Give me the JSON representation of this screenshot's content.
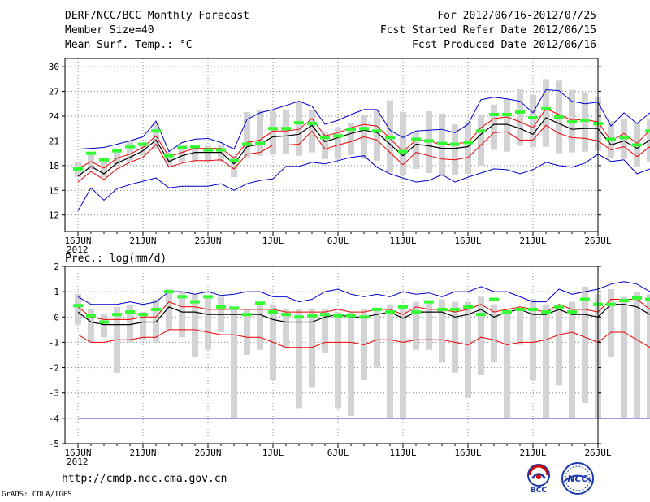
{
  "header": {
    "title": "DERF/NCC/BCC Monthly Forecast",
    "member_size": "Member Size=40",
    "variable": "Mean Surf. Temp.: °C",
    "period": "For 2012/06/16-2012/07/25",
    "fcst_started": "Fcst Started Refer Date 2012/06/15",
    "fcst_produced": "Fcst Produced Date 2012/06/16"
  },
  "footer": {
    "url": "http://cmdp.ncc.cma.gov.cn",
    "grads": "GrADS: COLA/IGES",
    "logo_bcc": "BCC",
    "logo_ncc": "NCC"
  },
  "colors": {
    "box": "#d3d3d6",
    "green": "#33ff33",
    "red": "#ee0000",
    "blue": "#0000cc",
    "mean": "#000000",
    "grid": "#888888"
  },
  "chart_data": [
    {
      "type": "line",
      "title": "Mean Surf. Temp.: °C",
      "x_tick_labels": [
        "16JUN",
        "21JUN",
        "26JUN",
        "1JUL",
        "6JUL",
        "11JUL",
        "16JUL",
        "21JUL",
        "26JUL"
      ],
      "year_label": "2012",
      "ylim": [
        10,
        31
      ],
      "yticks": [
        12,
        15,
        18,
        21,
        24,
        27,
        30
      ],
      "ytick_labels": [
        "12",
        "15",
        "18",
        "21",
        "24",
        "27",
        "30"
      ],
      "series": [
        {
          "name": "max",
          "color": "blue",
          "values": [
            20.0,
            20.1,
            20.2,
            20.6,
            21.0,
            21.5,
            23.4,
            19.7,
            20.8,
            21.2,
            21.3,
            20.8,
            20.0,
            23.6,
            24.4,
            24.8,
            25.3,
            25.8,
            25.2,
            23.0,
            23.5,
            24.2,
            24.8,
            24.8,
            22.3,
            21.4,
            22.2,
            22.3,
            22.4,
            22.0,
            23.0,
            26.0,
            26.3,
            26.1,
            25.8,
            24.4,
            27.2,
            27.1,
            25.8,
            25.5,
            25.7,
            22.8,
            24.4,
            23.1,
            24.4,
            24.2
          ]
        },
        {
          "name": "upper",
          "color": "red",
          "values": [
            17.6,
            18.5,
            17.7,
            18.9,
            19.4,
            20.2,
            21.6,
            19.1,
            19.6,
            20.1,
            20.1,
            20.1,
            18.9,
            20.8,
            21.1,
            22.2,
            22.2,
            22.4,
            23.7,
            21.6,
            22.0,
            22.6,
            23.0,
            22.8,
            21.3,
            19.7,
            21.1,
            21.0,
            20.5,
            20.7,
            20.8,
            22.6,
            23.7,
            23.9,
            23.3,
            22.6,
            24.9,
            24.2,
            23.5,
            23.6,
            23.3,
            21.0,
            21.9,
            20.7,
            22.3,
            21.6
          ]
        },
        {
          "name": "mean",
          "color": "mean",
          "values": [
            16.7,
            17.9,
            17.0,
            18.3,
            19.0,
            19.8,
            21.1,
            18.5,
            19.2,
            19.6,
            19.6,
            19.6,
            18.2,
            20.3,
            20.6,
            21.5,
            21.6,
            21.8,
            22.9,
            20.9,
            21.4,
            21.9,
            22.3,
            22.0,
            20.6,
            19.2,
            20.6,
            20.4,
            20.1,
            20.1,
            20.3,
            21.8,
            23.0,
            23.0,
            22.5,
            21.8,
            23.8,
            23.1,
            22.4,
            22.5,
            22.5,
            20.5,
            21.0,
            20.1,
            21.1,
            20.6
          ]
        },
        {
          "name": "lower",
          "color": "red",
          "values": [
            16.0,
            17.3,
            16.3,
            17.6,
            18.4,
            19.0,
            20.6,
            17.8,
            18.3,
            18.6,
            18.6,
            18.7,
            17.6,
            19.4,
            19.6,
            20.5,
            20.5,
            20.6,
            22.2,
            20.0,
            20.5,
            20.9,
            21.5,
            21.1,
            19.6,
            18.1,
            19.6,
            19.2,
            18.8,
            18.7,
            19.0,
            20.5,
            22.0,
            22.1,
            21.1,
            21.1,
            22.9,
            21.9,
            21.4,
            21.3,
            21.0,
            19.9,
            20.3,
            19.1,
            20.3,
            19.7
          ]
        },
        {
          "name": "min",
          "color": "blue",
          "values": [
            12.5,
            15.3,
            13.8,
            15.2,
            15.7,
            16.1,
            16.5,
            15.3,
            15.5,
            15.5,
            15.5,
            15.8,
            15.0,
            15.8,
            16.2,
            16.4,
            17.9,
            17.9,
            18.4,
            18.2,
            18.6,
            19.0,
            19.2,
            17.8,
            17.0,
            16.5,
            16.0,
            16.2,
            16.9,
            16.0,
            16.6,
            17.1,
            17.6,
            17.5,
            17.0,
            17.5,
            18.4,
            18.0,
            17.8,
            18.3,
            19.4,
            18.5,
            18.7,
            17.0,
            17.6,
            16.8
          ]
        }
      ],
      "boxes": [
        [
          16.6,
          18.5
        ],
        [
          17.5,
          19.4
        ],
        [
          16.6,
          18.4
        ],
        [
          17.8,
          19.8
        ],
        [
          18.5,
          21.0
        ],
        [
          19.2,
          20.8
        ],
        [
          20.0,
          23.2
        ],
        [
          17.9,
          19.6
        ],
        [
          18.5,
          20.4
        ],
        [
          18.5,
          20.5
        ],
        [
          18.5,
          20.4
        ],
        [
          18.5,
          20.5
        ],
        [
          16.6,
          19.2
        ],
        [
          19.0,
          24.5
        ],
        [
          19.2,
          24.7
        ],
        [
          19.3,
          24.6
        ],
        [
          19.4,
          24.8
        ],
        [
          19.2,
          25.7
        ],
        [
          19.6,
          24.8
        ],
        [
          18.8,
          22.0
        ],
        [
          18.8,
          22.6
        ],
        [
          19.3,
          23.2
        ],
        [
          18.8,
          24.1
        ],
        [
          18.6,
          24.8
        ],
        [
          17.2,
          25.9
        ],
        [
          16.9,
          24.5
        ],
        [
          17.6,
          22.0
        ],
        [
          17.1,
          24.6
        ],
        [
          16.7,
          24.3
        ],
        [
          16.9,
          23.0
        ],
        [
          17.0,
          23.3
        ],
        [
          18.0,
          24.2
        ],
        [
          19.9,
          25.4
        ],
        [
          19.7,
          26.1
        ],
        [
          20.4,
          27.3
        ],
        [
          20.2,
          26.6
        ],
        [
          20.3,
          28.5
        ],
        [
          19.5,
          28.3
        ],
        [
          19.6,
          27.2
        ],
        [
          19.7,
          26.9
        ],
        [
          19.8,
          26.3
        ],
        [
          18.9,
          23.4
        ],
        [
          18.8,
          23.7
        ],
        [
          17.9,
          23.3
        ],
        [
          18.5,
          23.6
        ],
        [
          18.5,
          23.6
        ]
      ],
      "median_marks": [
        17.6,
        19.5,
        18.7,
        19.8,
        20.3,
        20.6,
        22.2,
        19.2,
        20.2,
        20.3,
        19.9,
        19.9,
        18.6,
        20.6,
        20.7,
        22.5,
        22.5,
        23.2,
        23.1,
        21.4,
        21.6,
        22.4,
        22.5,
        22.2,
        21.4,
        19.7,
        21.2,
        21.0,
        20.7,
        20.6,
        20.8,
        22.2,
        24.2,
        24.2,
        24.5,
        23.8,
        24.9,
        23.9,
        23.3,
        23.5,
        23.1,
        21.2,
        21.4,
        20.5,
        22.2,
        21.8
      ]
    },
    {
      "type": "line",
      "title": "Prec.: log(mm/d)",
      "x_tick_labels": [
        "16JUN",
        "21JUN",
        "26JUN",
        "1JUL",
        "6JUL",
        "11JUL",
        "16JUL",
        "21JUL",
        "26JUL"
      ],
      "year_label": "2012",
      "ylim": [
        -5,
        2
      ],
      "yticks": [
        -5,
        -4,
        -3,
        -2,
        -1,
        0,
        1,
        2
      ],
      "ytick_labels": [
        "-5",
        "-4",
        "-3",
        "-2",
        "-1",
        "0",
        "1",
        "2"
      ],
      "series": [
        {
          "name": "max",
          "color": "blue",
          "values": [
            0.8,
            0.5,
            0.5,
            0.5,
            0.6,
            0.5,
            0.6,
            1.0,
            1.0,
            0.9,
            1.0,
            0.85,
            0.9,
            1.0,
            1.0,
            0.8,
            0.8,
            0.6,
            0.7,
            1.0,
            1.1,
            0.9,
            0.8,
            0.9,
            0.8,
            1.0,
            0.9,
            0.95,
            0.8,
            1.0,
            1.0,
            1.2,
            1.0,
            1.0,
            0.8,
            0.6,
            0.6,
            1.1,
            0.9,
            1.0,
            1.1,
            1.3,
            1.4,
            1.3,
            1.0,
            0.8
          ]
        },
        {
          "name": "upper",
          "color": "red",
          "values": [
            0.4,
            0.0,
            -0.1,
            -0.1,
            -0.1,
            0.0,
            0.0,
            0.6,
            0.4,
            0.4,
            0.3,
            0.3,
            0.3,
            0.3,
            0.3,
            0.3,
            0.2,
            0.2,
            0.2,
            0.2,
            0.3,
            0.2,
            0.2,
            0.3,
            0.3,
            0.1,
            0.4,
            0.3,
            0.3,
            0.2,
            0.3,
            0.5,
            0.2,
            0.3,
            0.4,
            0.3,
            0.2,
            0.5,
            0.3,
            0.3,
            0.2,
            0.7,
            0.7,
            0.7,
            0.3,
            0.0
          ]
        },
        {
          "name": "mean",
          "color": "mean",
          "values": [
            0.2,
            -0.2,
            -0.3,
            -0.3,
            -0.3,
            -0.2,
            -0.2,
            0.4,
            0.2,
            0.2,
            0.1,
            0.1,
            0.1,
            0.1,
            0.1,
            -0.1,
            -0.2,
            -0.2,
            -0.2,
            0.0,
            0.1,
            0.0,
            0.0,
            0.1,
            0.2,
            -0.05,
            0.2,
            0.2,
            0.2,
            0.0,
            0.1,
            0.3,
            0.0,
            0.2,
            0.3,
            0.1,
            0.1,
            0.3,
            0.1,
            0.1,
            0.0,
            0.5,
            0.5,
            0.4,
            0.1,
            -0.1
          ]
        },
        {
          "name": "lower",
          "color": "red",
          "values": [
            -0.7,
            -1.0,
            -1.0,
            -0.9,
            -0.9,
            -0.8,
            -0.8,
            -0.5,
            -0.5,
            -0.5,
            -0.6,
            -0.7,
            -0.7,
            -0.8,
            -0.8,
            -1.0,
            -1.2,
            -1.2,
            -1.2,
            -1.0,
            -1.0,
            -1.0,
            -1.1,
            -0.9,
            -0.9,
            -1.0,
            -0.9,
            -0.9,
            -0.9,
            -1.0,
            -1.1,
            -0.8,
            -0.9,
            -1.1,
            -1.0,
            -1.0,
            -0.9,
            -0.7,
            -0.6,
            -0.8,
            -1.0,
            -0.6,
            -0.6,
            -0.9,
            -1.2,
            -1.4
          ]
        },
        {
          "name": "min",
          "color": "blue",
          "values": [
            -4,
            -4,
            -4,
            -4,
            -4,
            -4,
            -4,
            -4,
            -4,
            -4,
            -4,
            -4,
            -4,
            -4,
            -4,
            -4,
            -4,
            -4,
            -4,
            -4,
            -4,
            -4,
            -4,
            -4,
            -4,
            -4,
            -4,
            -4,
            -4,
            -4,
            -4,
            -4,
            -4,
            -4,
            -4,
            -4,
            -4,
            -4,
            -4,
            -4,
            -4,
            -4,
            -4,
            -4,
            -4,
            -4
          ]
        }
      ],
      "boxes": [
        [
          -0.3,
          0.9
        ],
        [
          -1.0,
          0.3
        ],
        [
          -0.8,
          0.1
        ],
        [
          -2.2,
          0.4
        ],
        [
          -1.0,
          0.5
        ],
        [
          -0.9,
          0.2
        ],
        [
          -1.0,
          0.7
        ],
        [
          -0.5,
          1.1
        ],
        [
          -0.8,
          1.0
        ],
        [
          -1.6,
          0.9
        ],
        [
          -1.3,
          0.8
        ],
        [
          -0.6,
          0.8
        ],
        [
          -4.0,
          0.3
        ],
        [
          -1.5,
          0.3
        ],
        [
          -1.3,
          0.6
        ],
        [
          -2.5,
          0.5
        ],
        [
          -1.2,
          0.3
        ],
        [
          -3.6,
          0.3
        ],
        [
          -2.8,
          0.3
        ],
        [
          -1.4,
          0.3
        ],
        [
          -3.6,
          0.2
        ],
        [
          -3.9,
          0.2
        ],
        [
          -2.5,
          0.3
        ],
        [
          -2.0,
          0.3
        ],
        [
          -4.0,
          0.5
        ],
        [
          -4.0,
          0.4
        ],
        [
          -1.3,
          0.6
        ],
        [
          -1.3,
          0.6
        ],
        [
          -1.8,
          0.7
        ],
        [
          -2.2,
          0.6
        ],
        [
          -3.2,
          0.6
        ],
        [
          -2.3,
          0.8
        ],
        [
          -1.8,
          0.5
        ],
        [
          -4.0,
          0.3
        ],
        [
          -1.1,
          0.3
        ],
        [
          -2.5,
          0.7
        ],
        [
          -4.0,
          0.5
        ],
        [
          -2.7,
          0.4
        ],
        [
          -4.0,
          0.6
        ],
        [
          -3.4,
          1.2
        ],
        [
          -4.0,
          0.9
        ],
        [
          -1.6,
          1.1
        ],
        [
          -4.0,
          0.8
        ],
        [
          -4.0,
          1.0
        ],
        [
          -4.0,
          0.9
        ],
        [
          -4.0,
          0.6
        ]
      ],
      "median_marks": [
        0.45,
        0.05,
        -0.2,
        0.1,
        0.2,
        0.1,
        0.3,
        1.0,
        0.8,
        0.6,
        0.8,
        0.4,
        0.35,
        0.1,
        0.55,
        0.2,
        0.1,
        0.0,
        0.05,
        0.1,
        0.05,
        0.05,
        0.0,
        0.3,
        0.2,
        0.4,
        0.2,
        0.6,
        0.3,
        0.3,
        0.4,
        0.1,
        0.7,
        0.2,
        0.3,
        0.3,
        0.2,
        0.4,
        0.2,
        0.7,
        0.5,
        0.5,
        0.65,
        0.75,
        0.7,
        0.15
      ]
    }
  ]
}
